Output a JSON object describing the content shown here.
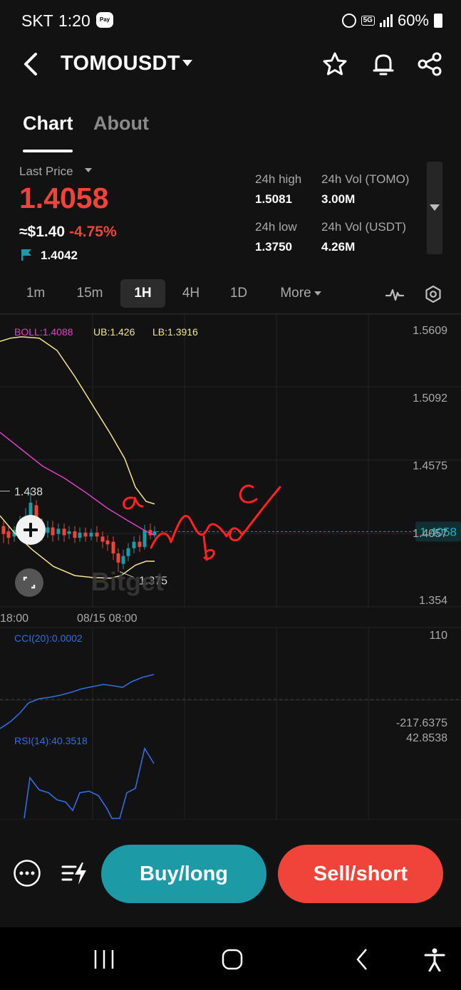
{
  "status_bar": {
    "carrier": "SKT",
    "time": "1:20",
    "pay_badge": "Pay",
    "network": "5G",
    "battery": "60%"
  },
  "header": {
    "title": "TOMOUSDT",
    "icons": [
      "back-icon",
      "star-icon",
      "bell-icon",
      "share-icon"
    ]
  },
  "tabs": [
    {
      "label": "Chart",
      "active": true
    },
    {
      "label": "About",
      "active": false
    }
  ],
  "ticker": {
    "last_price_label": "Last Price",
    "last_price": "1.4058",
    "approx_usd": "≈$1.40",
    "change_pct": "-4.75%",
    "mark_price": "1.4042",
    "high_label": "24h high",
    "high": "1.5081",
    "low_label": "24h low",
    "low": "1.3750",
    "vol_base_label": "24h Vol (TOMO)",
    "vol_base": "3.00M",
    "vol_quote_label": "24h Vol (USDT)",
    "vol_quote": "4.26M"
  },
  "intervals": [
    {
      "label": "1m",
      "active": false
    },
    {
      "label": "15m",
      "active": false
    },
    {
      "label": "1H",
      "active": true
    },
    {
      "label": "4H",
      "active": false
    },
    {
      "label": "1D",
      "active": false
    },
    {
      "label": "More",
      "active": false
    }
  ],
  "chart_data": {
    "type": "candlestick",
    "interval": "1H",
    "price_axis_ticks": [
      "1.5609",
      "1.5092",
      "1.4575",
      "1.4057",
      "1.354"
    ],
    "time_axis_labels": [
      "18:00",
      "08/15 08:00"
    ],
    "current_price_tag": "1.4058",
    "high_marker": "1.438",
    "low_marker": "1.375",
    "watermark": "Bitget",
    "indicators": {
      "boll": {
        "label": "BOLL:1.4088",
        "color": "#e040c8"
      },
      "ub": {
        "label": "UB:1.426",
        "color": "#f4e68a"
      },
      "lb": {
        "label": "LB:1.3916",
        "color": "#f4e68a"
      }
    },
    "candles_colors": {
      "up": "#1c9aa6",
      "down": "#f0443a"
    },
    "handwritten_annotations": [
      "a",
      "b",
      "c"
    ],
    "cci": {
      "label": "CCI(20):0.0002",
      "axis_top": "110",
      "axis_bottom": "-217.6375",
      "color": "#2f6fe0"
    },
    "rsi": {
      "label": "RSI(14):40.3518",
      "axis_top": "42.8538",
      "color": "#2f6fe0"
    }
  },
  "actions": {
    "buy_label": "Buy/long",
    "sell_label": "Sell/short"
  }
}
